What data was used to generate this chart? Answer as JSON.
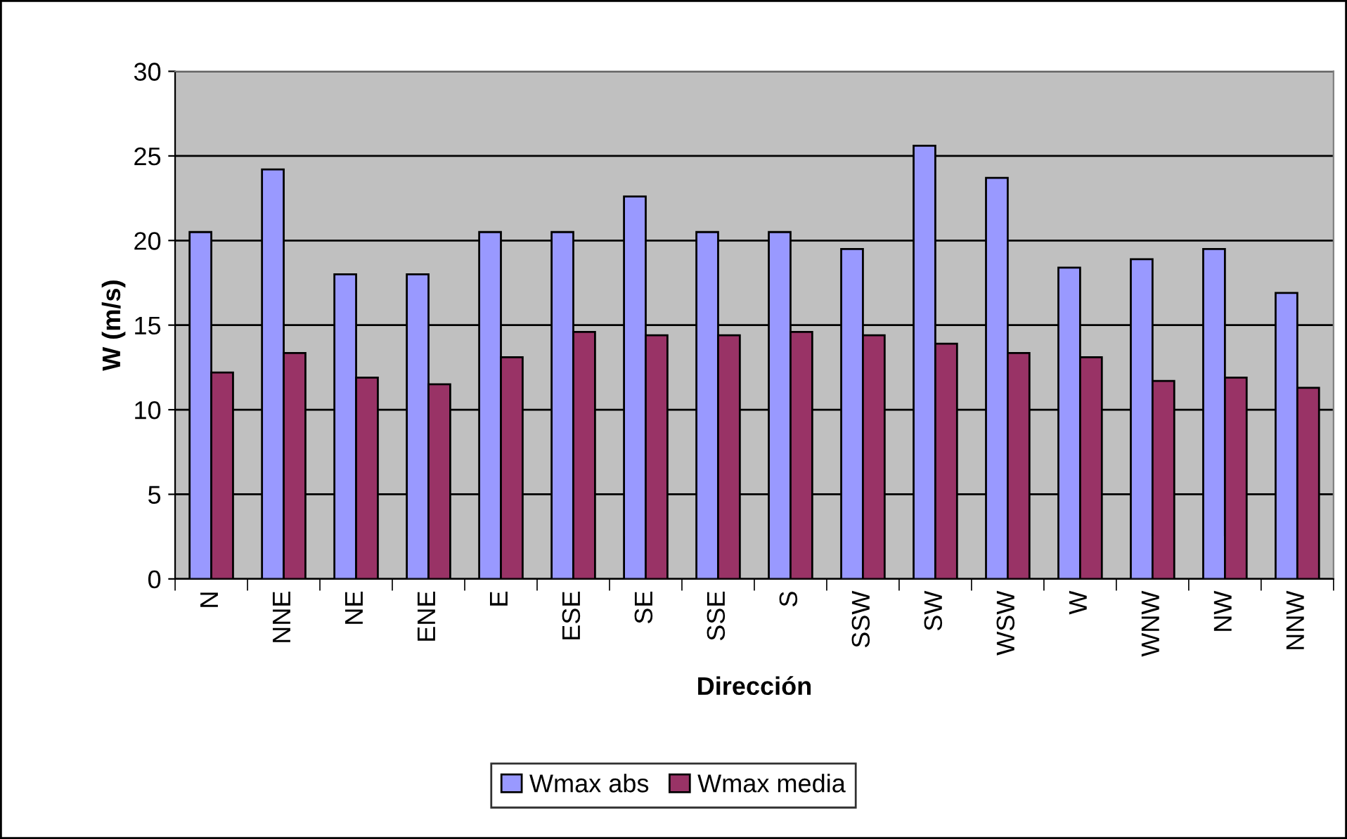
{
  "chart_data": {
    "type": "bar",
    "xlabel": "Dirección",
    "ylabel": "W (m/s)",
    "categories": [
      "N",
      "NNE",
      "NE",
      "ENE",
      "E",
      "ESE",
      "SE",
      "SSE",
      "S",
      "SSW",
      "SW",
      "WSW",
      "W",
      "WNW",
      "NW",
      "NNW"
    ],
    "series": [
      {
        "name": "Wmax abs",
        "color": "#9999ff",
        "values": [
          20.5,
          24.2,
          18.0,
          18.0,
          20.5,
          20.5,
          22.6,
          20.5,
          20.5,
          19.5,
          25.6,
          23.7,
          18.4,
          18.9,
          19.5,
          16.9
        ]
      },
      {
        "name": "Wmax media",
        "color": "#993366",
        "values": [
          12.2,
          13.35,
          11.9,
          11.5,
          13.1,
          14.6,
          14.4,
          14.4,
          14.6,
          14.4,
          13.9,
          13.35,
          13.1,
          11.7,
          11.9,
          11.3
        ]
      }
    ],
    "ylim": [
      0,
      30
    ],
    "yticks": [
      0,
      5,
      10,
      15,
      20,
      25,
      30
    ],
    "grid": "y",
    "legend": "bottom"
  }
}
